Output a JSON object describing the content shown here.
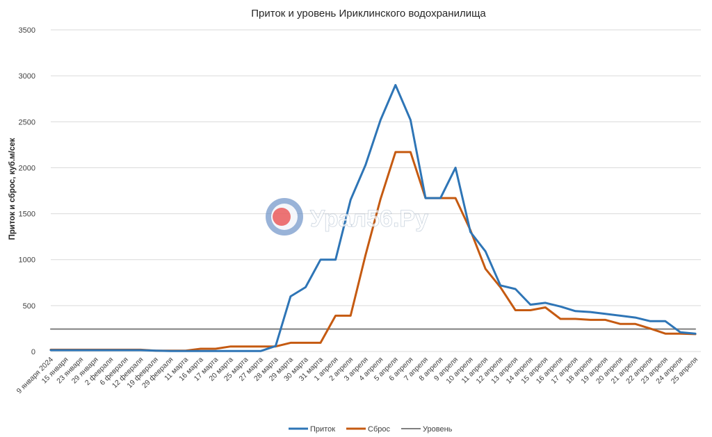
{
  "chart_data": {
    "type": "line",
    "title": "Приток и уровень Ириклинского водохранилища",
    "ylabel": "Приток и сброс, куб.м/сек",
    "xlabel": "",
    "ylim": [
      0,
      3500
    ],
    "yticks": [
      0,
      500,
      1000,
      1500,
      2000,
      2500,
      3000,
      3500
    ],
    "grid": true,
    "legend_position": "bottom",
    "categories": [
      "9 января 2024",
      "15 января",
      "23 января",
      "29 января",
      "2 февраля",
      "6 февраля",
      "12 февраля",
      "19 февраля",
      "29 февраля",
      "11 марта",
      "16 марта",
      "17 марта",
      "20 марта",
      "25 марта",
      "27 марта",
      "28 марта",
      "29 марта",
      "30 марта",
      "31 марта",
      "1 апреля",
      "2 апреля",
      "3 апреля",
      "4 апреля",
      "5 апреля",
      "6 апреля",
      "7 апреля",
      "8 апреля",
      "9 апреля",
      "10 апреля",
      "11 апреля",
      "12 апреля",
      "13 апреля",
      "14 апреля",
      "15 апреля",
      "16 апреля",
      "17 апреля",
      "18 апреля",
      "19 апреля",
      "20 апреля",
      "21 апреля",
      "22 апреля",
      "23 апреля",
      "24 апреля",
      "25 апреля"
    ],
    "series": [
      {
        "name": "Приток",
        "color": "#2e75b6",
        "values": [
          15,
          15,
          15,
          15,
          15,
          15,
          15,
          10,
          5,
          5,
          5,
          5,
          5,
          5,
          5,
          60,
          600,
          700,
          1000,
          1000,
          1650,
          2030,
          2520,
          2900,
          2520,
          1670,
          1670,
          2000,
          1300,
          1090,
          720,
          680,
          510,
          530,
          490,
          440,
          430,
          410,
          390,
          370,
          330,
          330,
          210,
          195
        ]
      },
      {
        "name": "Сброс",
        "color": "#c55a11",
        "values": [
          20,
          20,
          20,
          20,
          20,
          20,
          20,
          10,
          10,
          10,
          30,
          30,
          55,
          55,
          55,
          55,
          95,
          95,
          95,
          390,
          390,
          1050,
          1660,
          2170,
          2170,
          1670,
          1670,
          1670,
          1320,
          900,
          700,
          450,
          450,
          480,
          355,
          355,
          345,
          345,
          300,
          300,
          250,
          195,
          195,
          190
        ]
      },
      {
        "name": "Уровень",
        "color": "#7f7f7f",
        "values": [
          245,
          245,
          245,
          245,
          245,
          245,
          245,
          245,
          245,
          245,
          245,
          245,
          245,
          245,
          245,
          245,
          245,
          245,
          245,
          245,
          245,
          245,
          245,
          245,
          245,
          245,
          245,
          245,
          245,
          245,
          245,
          245,
          245,
          245,
          245,
          245,
          245,
          245,
          245,
          245,
          245,
          245,
          245,
          245
        ]
      }
    ]
  },
  "watermark": {
    "text": "Урал56.Ру",
    "logo_colors": {
      "outer": "#6a8fc6",
      "inner": "#e84a4a",
      "ring": "#ffffff"
    }
  }
}
